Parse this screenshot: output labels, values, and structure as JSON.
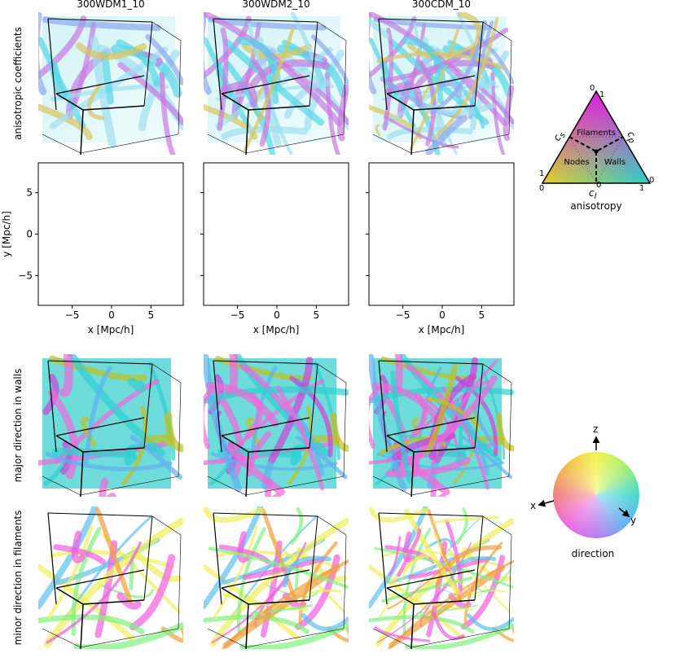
{
  "columns": [
    "300WDM1_10",
    "300WDM2_10",
    "300CDM_10"
  ],
  "rows": [
    "anisotropic coefficients",
    "major direction in walls",
    "minor direction in filaments"
  ],
  "chart_data": [
    {
      "type": "image",
      "xlabel": "x [Mpc/h]",
      "ylabel": "y [Mpc/h]",
      "xlim": [
        -9.3,
        9.1
      ],
      "ylim": [
        -8.6,
        8.6
      ],
      "xticks": [
        {
          "value": -5,
          "label": "−5"
        },
        0,
        5
      ],
      "yticks": [
        {
          "value": -5,
          "label": "−5"
        },
        0,
        5
      ]
    },
    {
      "type": "image",
      "xlabel": "x [Mpc/h]",
      "xlim": [
        -9.3,
        9.1
      ],
      "ylim": [
        -8.6,
        8.6
      ],
      "xticks": [
        {
          "value": -5,
          "label": "−5"
        },
        0,
        5
      ],
      "yticks": [
        -5,
        0,
        5
      ]
    },
    {
      "type": "image",
      "xlabel": "x [Mpc/h]",
      "xlim": [
        -9.3,
        9.1
      ],
      "ylim": [
        -8.6,
        8.6
      ],
      "xticks": [
        {
          "value": -5,
          "label": "−5"
        },
        0,
        5
      ],
      "yticks": [
        -5,
        0,
        5
      ]
    }
  ],
  "ternary_legend": {
    "title": "anisotropy",
    "regions": [
      "Filaments",
      "Nodes",
      "Walls"
    ],
    "axes": [
      {
        "symbol": "c",
        "sub": "s"
      },
      {
        "symbol": "c",
        "sub": "p"
      },
      {
        "symbol": "c",
        "sub": "l"
      }
    ],
    "ticks": [
      "0",
      "1",
      "1",
      "0",
      "0",
      "0",
      "1"
    ]
  },
  "direction_legend": {
    "title": "direction",
    "axes": [
      "z",
      "x",
      "y"
    ]
  }
}
